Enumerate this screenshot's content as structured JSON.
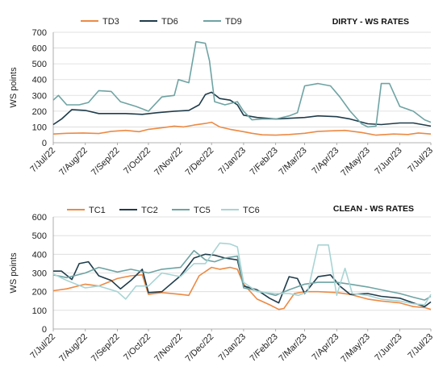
{
  "chart_data": [
    {
      "type": "line",
      "title": "DIRTY - WS RATES",
      "ylabel": "WS points",
      "ylim": [
        0,
        700
      ],
      "yticks": [
        "0",
        "100",
        "200",
        "300",
        "400",
        "500",
        "600",
        "700"
      ],
      "xlim": [
        "2022-07-07",
        "2023-07-07"
      ],
      "xticks": [
        "7/Jul/22",
        "7/Aug/22",
        "7/Sep/22",
        "7/Oct/22",
        "7/Nov/22",
        "7/Dec/22",
        "7/Jan/23",
        "7/Feb/23",
        "7/Mar/23",
        "7/Apr/23",
        "7/May/23",
        "7/Jun/23",
        "7/Jul/23"
      ],
      "legend_position": "top-left",
      "series": [
        {
          "name": "TD3",
          "color": "#ec8a44",
          "points": [
            [
              "2022-07-07",
              55
            ],
            [
              "2022-07-20",
              60
            ],
            [
              "2022-08-05",
              62
            ],
            [
              "2022-08-20",
              58
            ],
            [
              "2022-09-01",
              72
            ],
            [
              "2022-09-15",
              78
            ],
            [
              "2022-09-28",
              70
            ],
            [
              "2022-10-07",
              85
            ],
            [
              "2022-10-20",
              95
            ],
            [
              "2022-11-01",
              105
            ],
            [
              "2022-11-10",
              100
            ],
            [
              "2022-11-20",
              112
            ],
            [
              "2022-12-01",
              122
            ],
            [
              "2022-12-07",
              130
            ],
            [
              "2022-12-15",
              100
            ],
            [
              "2022-12-25",
              85
            ],
            [
              "2023-01-07",
              70
            ],
            [
              "2023-01-15",
              60
            ],
            [
              "2023-01-25",
              50
            ],
            [
              "2023-02-07",
              48
            ],
            [
              "2023-02-20",
              52
            ],
            [
              "2023-03-07",
              60
            ],
            [
              "2023-03-20",
              72
            ],
            [
              "2023-04-01",
              75
            ],
            [
              "2023-04-15",
              78
            ],
            [
              "2023-05-01",
              65
            ],
            [
              "2023-05-15",
              48
            ],
            [
              "2023-06-01",
              55
            ],
            [
              "2023-06-15",
              52
            ],
            [
              "2023-06-25",
              62
            ],
            [
              "2023-07-07",
              55
            ]
          ]
        },
        {
          "name": "TD6",
          "color": "#1f3c4b",
          "points": [
            [
              "2022-07-07",
              115
            ],
            [
              "2022-07-15",
              150
            ],
            [
              "2022-07-25",
              210
            ],
            [
              "2022-08-07",
              205
            ],
            [
              "2022-08-20",
              185
            ],
            [
              "2022-09-01",
              185
            ],
            [
              "2022-09-15",
              185
            ],
            [
              "2022-10-01",
              180
            ],
            [
              "2022-10-15",
              190
            ],
            [
              "2022-11-01",
              200
            ],
            [
              "2022-11-15",
              205
            ],
            [
              "2022-11-25",
              240
            ],
            [
              "2022-12-01",
              305
            ],
            [
              "2022-12-07",
              320
            ],
            [
              "2022-12-15",
              280
            ],
            [
              "2022-12-25",
              270
            ],
            [
              "2023-01-01",
              240
            ],
            [
              "2023-01-07",
              175
            ],
            [
              "2023-01-20",
              160
            ],
            [
              "2023-02-07",
              150
            ],
            [
              "2023-02-20",
              155
            ],
            [
              "2023-03-07",
              160
            ],
            [
              "2023-03-20",
              170
            ],
            [
              "2023-04-07",
              165
            ],
            [
              "2023-04-20",
              150
            ],
            [
              "2023-05-07",
              120
            ],
            [
              "2023-05-20",
              115
            ],
            [
              "2023-06-07",
              125
            ],
            [
              "2023-06-20",
              125
            ],
            [
              "2023-07-07",
              105
            ]
          ]
        },
        {
          "name": "TD9",
          "color": "#6fa3a3",
          "points": [
            [
              "2022-07-07",
              270
            ],
            [
              "2022-07-12",
              300
            ],
            [
              "2022-07-20",
              240
            ],
            [
              "2022-08-01",
              240
            ],
            [
              "2022-08-10",
              255
            ],
            [
              "2022-08-20",
              330
            ],
            [
              "2022-09-01",
              325
            ],
            [
              "2022-09-10",
              260
            ],
            [
              "2022-09-25",
              230
            ],
            [
              "2022-10-07",
              200
            ],
            [
              "2022-10-20",
              290
            ],
            [
              "2022-11-01",
              300
            ],
            [
              "2022-11-05",
              400
            ],
            [
              "2022-11-15",
              380
            ],
            [
              "2022-11-22",
              640
            ],
            [
              "2022-12-01",
              630
            ],
            [
              "2022-12-05",
              520
            ],
            [
              "2022-12-10",
              260
            ],
            [
              "2022-12-20",
              240
            ],
            [
              "2023-01-01",
              260
            ],
            [
              "2023-01-07",
              200
            ],
            [
              "2023-01-15",
              145
            ],
            [
              "2023-01-25",
              150
            ],
            [
              "2023-02-07",
              150
            ],
            [
              "2023-02-20",
              170
            ],
            [
              "2023-02-28",
              190
            ],
            [
              "2023-03-07",
              360
            ],
            [
              "2023-03-20",
              375
            ],
            [
              "2023-04-01",
              360
            ],
            [
              "2023-04-10",
              290
            ],
            [
              "2023-04-20",
              200
            ],
            [
              "2023-05-01",
              120
            ],
            [
              "2023-05-07",
              100
            ],
            [
              "2023-05-15",
              105
            ],
            [
              "2023-05-20",
              375
            ],
            [
              "2023-05-28",
              375
            ],
            [
              "2023-06-07",
              230
            ],
            [
              "2023-06-20",
              200
            ],
            [
              "2023-07-01",
              145
            ],
            [
              "2023-07-07",
              130
            ]
          ]
        }
      ]
    },
    {
      "type": "line",
      "title": "CLEAN - WS RATES",
      "ylabel": "WS points",
      "ylim": [
        0,
        600
      ],
      "yticks": [
        "0",
        "100",
        "200",
        "300",
        "400",
        "500",
        "600"
      ],
      "xlim": [
        "2022-07-07",
        "2023-07-07"
      ],
      "xticks": [
        "7/Jul/22",
        "7/Aug/22",
        "7/Sep/22",
        "7/Oct/22",
        "7/Nov/22",
        "7/Dec/22",
        "7/Jan/23",
        "7/Feb/23",
        "7/Mar/23",
        "7/Apr/23",
        "7/May/23",
        "7/Jun/23",
        "7/Jul/23"
      ],
      "legend_position": "top-left",
      "series": [
        {
          "name": "TC1",
          "color": "#ec8a44",
          "points": [
            [
              "2022-07-07",
              205
            ],
            [
              "2022-07-20",
              215
            ],
            [
              "2022-08-07",
              240
            ],
            [
              "2022-08-20",
              230
            ],
            [
              "2022-09-07",
              270
            ],
            [
              "2022-09-20",
              285
            ],
            [
              "2022-10-01",
              290
            ],
            [
              "2022-10-07",
              185
            ],
            [
              "2022-10-20",
              195
            ],
            [
              "2022-11-07",
              185
            ],
            [
              "2022-11-15",
              180
            ],
            [
              "2022-11-25",
              285
            ],
            [
              "2022-12-07",
              330
            ],
            [
              "2022-12-15",
              320
            ],
            [
              "2022-12-25",
              330
            ],
            [
              "2023-01-01",
              320
            ],
            [
              "2023-01-07",
              240
            ],
            [
              "2023-01-20",
              160
            ],
            [
              "2023-02-01",
              130
            ],
            [
              "2023-02-10",
              105
            ],
            [
              "2023-02-15",
              110
            ],
            [
              "2023-02-25",
              190
            ],
            [
              "2023-03-07",
              200
            ],
            [
              "2023-03-20",
              200
            ],
            [
              "2023-04-07",
              195
            ],
            [
              "2023-04-20",
              185
            ],
            [
              "2023-05-07",
              160
            ],
            [
              "2023-05-20",
              150
            ],
            [
              "2023-06-07",
              140
            ],
            [
              "2023-06-20",
              120
            ],
            [
              "2023-07-01",
              115
            ],
            [
              "2023-07-07",
              105
            ]
          ]
        },
        {
          "name": "TC2",
          "color": "#1f3c4b",
          "points": [
            [
              "2022-07-07",
              310
            ],
            [
              "2022-07-15",
              310
            ],
            [
              "2022-07-25",
              265
            ],
            [
              "2022-08-01",
              350
            ],
            [
              "2022-08-10",
              360
            ],
            [
              "2022-08-20",
              285
            ],
            [
              "2022-09-01",
              260
            ],
            [
              "2022-09-10",
              215
            ],
            [
              "2022-09-20",
              260
            ],
            [
              "2022-10-01",
              320
            ],
            [
              "2022-10-07",
              195
            ],
            [
              "2022-10-20",
              200
            ],
            [
              "2022-11-07",
              285
            ],
            [
              "2022-11-20",
              380
            ],
            [
              "2022-12-01",
              400
            ],
            [
              "2022-12-10",
              395
            ],
            [
              "2022-12-20",
              380
            ],
            [
              "2023-01-01",
              370
            ],
            [
              "2023-01-07",
              230
            ],
            [
              "2023-01-20",
              210
            ],
            [
              "2023-02-01",
              165
            ],
            [
              "2023-02-10",
              140
            ],
            [
              "2023-02-20",
              280
            ],
            [
              "2023-02-28",
              270
            ],
            [
              "2023-03-07",
              190
            ],
            [
              "2023-03-20",
              280
            ],
            [
              "2023-04-01",
              290
            ],
            [
              "2023-04-10",
              230
            ],
            [
              "2023-04-20",
              185
            ],
            [
              "2023-05-07",
              190
            ],
            [
              "2023-05-20",
              175
            ],
            [
              "2023-06-07",
              165
            ],
            [
              "2023-06-20",
              140
            ],
            [
              "2023-07-01",
              120
            ],
            [
              "2023-07-07",
              145
            ]
          ]
        },
        {
          "name": "TC5",
          "color": "#6fa3a3",
          "points": [
            [
              "2022-07-07",
              290
            ],
            [
              "2022-07-20",
              275
            ],
            [
              "2022-08-07",
              300
            ],
            [
              "2022-08-20",
              330
            ],
            [
              "2022-09-07",
              305
            ],
            [
              "2022-09-20",
              320
            ],
            [
              "2022-10-07",
              300
            ],
            [
              "2022-10-20",
              320
            ],
            [
              "2022-11-07",
              330
            ],
            [
              "2022-11-20",
              420
            ],
            [
              "2022-12-01",
              370
            ],
            [
              "2022-12-10",
              360
            ],
            [
              "2022-12-20",
              380
            ],
            [
              "2023-01-01",
              390
            ],
            [
              "2023-01-07",
              220
            ],
            [
              "2023-01-20",
              205
            ],
            [
              "2023-02-07",
              180
            ],
            [
              "2023-02-20",
              210
            ],
            [
              "2023-03-07",
              240
            ],
            [
              "2023-03-20",
              250
            ],
            [
              "2023-04-07",
              250
            ],
            [
              "2023-04-20",
              240
            ],
            [
              "2023-05-07",
              225
            ],
            [
              "2023-05-20",
              210
            ],
            [
              "2023-06-07",
              190
            ],
            [
              "2023-06-20",
              170
            ],
            [
              "2023-07-01",
              155
            ],
            [
              "2023-07-07",
              175
            ]
          ]
        },
        {
          "name": "TC6",
          "color": "#a9d4d4",
          "points": [
            [
              "2022-07-07",
              295
            ],
            [
              "2022-07-20",
              260
            ],
            [
              "2022-08-07",
              220
            ],
            [
              "2022-08-20",
              230
            ],
            [
              "2022-09-07",
              200
            ],
            [
              "2022-09-15",
              160
            ],
            [
              "2022-09-25",
              230
            ],
            [
              "2022-10-07",
              230
            ],
            [
              "2022-10-20",
              300
            ],
            [
              "2022-11-07",
              280
            ],
            [
              "2022-11-20",
              350
            ],
            [
              "2022-12-01",
              350
            ],
            [
              "2022-12-15",
              460
            ],
            [
              "2022-12-25",
              455
            ],
            [
              "2023-01-01",
              440
            ],
            [
              "2023-01-07",
              250
            ],
            [
              "2023-01-20",
              200
            ],
            [
              "2023-02-07",
              190
            ],
            [
              "2023-02-20",
              190
            ],
            [
              "2023-03-01",
              180
            ],
            [
              "2023-03-10",
              200
            ],
            [
              "2023-03-20",
              450
            ],
            [
              "2023-03-30",
              450
            ],
            [
              "2023-04-07",
              180
            ],
            [
              "2023-04-15",
              325
            ],
            [
              "2023-04-22",
              190
            ],
            [
              "2023-05-07",
              180
            ],
            [
              "2023-05-20",
              160
            ],
            [
              "2023-06-07",
              150
            ],
            [
              "2023-06-20",
              135
            ],
            [
              "2023-07-01",
              130
            ],
            [
              "2023-07-07",
              185
            ]
          ]
        }
      ]
    }
  ]
}
